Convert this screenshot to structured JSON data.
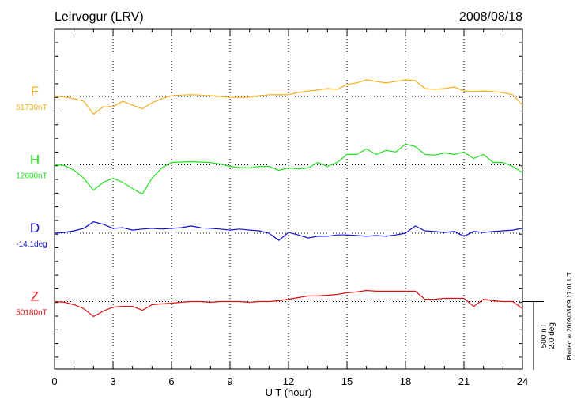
{
  "chart_data": {
    "type": "line",
    "title": "Leirvogur (LRV)",
    "date": "2008/08/18",
    "x_label": "U T (hour)",
    "plotted_note": "Plotted at 2009/03/09 17:01 UT",
    "xlim": [
      0,
      24
    ],
    "xticks": [
      0,
      3,
      6,
      9,
      12,
      15,
      18,
      21,
      24
    ],
    "grid": true,
    "scale_bar": [
      {
        "value": 500,
        "label": "500 nT"
      },
      {
        "value": 2.0,
        "label": "2.0 deg"
      }
    ],
    "x": [
      0,
      0.5,
      1,
      1.5,
      2,
      2.5,
      3,
      3.5,
      4,
      4.5,
      5,
      5.5,
      6,
      6.5,
      7,
      7.5,
      8,
      8.5,
      9,
      9.5,
      10,
      10.5,
      11,
      11.5,
      12,
      12.5,
      13,
      13.5,
      14,
      14.5,
      15,
      15.5,
      16,
      16.5,
      17,
      17.5,
      18,
      18.5,
      19,
      19.5,
      20,
      20.5,
      21,
      21.5,
      22,
      22.5,
      23,
      23.5,
      24
    ],
    "series": [
      {
        "name": "F",
        "baseline_label": "51730nT",
        "color": "#f0b020",
        "scale": 0,
        "values": [
          0,
          -3,
          -17,
          -35,
          -130,
          -75,
          -75,
          -35,
          -64,
          -90,
          -46,
          -17,
          6,
          10,
          12,
          10,
          6,
          0,
          -6,
          -6,
          -6,
          5,
          12,
          12,
          12,
          29,
          40,
          46,
          58,
          52,
          87,
          99,
          122,
          110,
          99,
          110,
          122,
          116,
          58,
          52,
          58,
          70,
          40,
          35,
          40,
          35,
          29,
          12,
          -64
        ]
      },
      {
        "name": "H",
        "baseline_label": "12600nT",
        "color": "#22e022",
        "scale": 0,
        "values": [
          0,
          -5,
          -40,
          -99,
          -186,
          -128,
          -99,
          -128,
          -174,
          -215,
          -99,
          -23,
          17,
          20,
          23,
          20,
          17,
          5,
          -12,
          -20,
          -23,
          -12,
          -12,
          -41,
          -23,
          -30,
          -23,
          17,
          -12,
          17,
          76,
          76,
          116,
          76,
          105,
          93,
          151,
          134,
          76,
          70,
          87,
          76,
          93,
          46,
          76,
          17,
          17,
          -12,
          -58
        ]
      },
      {
        "name": "D",
        "baseline_label": "-14.1deg",
        "color": "#1010d0",
        "scale": 1,
        "values": [
          0,
          0.02,
          0.07,
          0.14,
          0.33,
          0.26,
          0.14,
          0.16,
          0.09,
          0.12,
          0.14,
          0.12,
          0.14,
          0.16,
          0.21,
          0.16,
          0.14,
          0.12,
          0.09,
          0.12,
          0.09,
          0.07,
          0,
          -0.21,
          0.02,
          -0.05,
          -0.14,
          -0.09,
          -0.09,
          -0.05,
          -0.05,
          -0.07,
          -0.09,
          -0.07,
          -0.09,
          -0.05,
          0,
          0.21,
          0.07,
          0.05,
          0.02,
          0.05,
          -0.09,
          0.05,
          0.02,
          0.05,
          0.07,
          0.09,
          0.14
        ]
      },
      {
        "name": "Z",
        "baseline_label": "50180nT",
        "color": "#e01010",
        "scale": 0,
        "values": [
          0,
          -5,
          -23,
          -52,
          -110,
          -70,
          -41,
          -35,
          -35,
          -64,
          -23,
          -17,
          -12,
          -5,
          0,
          0,
          -6,
          0,
          0,
          0,
          -6,
          0,
          0,
          6,
          17,
          29,
          41,
          41,
          46,
          52,
          64,
          70,
          81,
          76,
          76,
          76,
          76,
          76,
          17,
          17,
          23,
          23,
          23,
          -35,
          17,
          6,
          0,
          0,
          -52
        ]
      }
    ]
  }
}
